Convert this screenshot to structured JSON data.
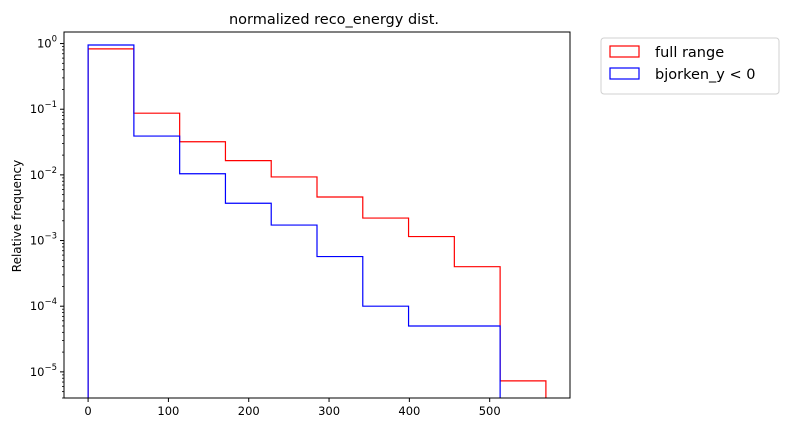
{
  "chart_data": {
    "type": "histogram",
    "title": "normalized reco_energy dist.",
    "xlabel": "",
    "ylabel": "Relative frequency",
    "yscale": "log",
    "xlim": [
      -30,
      600
    ],
    "ylim": [
      4e-06,
      1.5
    ],
    "x_ticks": [
      0,
      100,
      200,
      300,
      400,
      500
    ],
    "y_ticks": [
      {
        "value": 1e-05,
        "base": "10",
        "exp": "−5"
      },
      {
        "value": 0.0001,
        "base": "10",
        "exp": "−4"
      },
      {
        "value": 0.001,
        "base": "10",
        "exp": "−3"
      },
      {
        "value": 0.01,
        "base": "10",
        "exp": "−2"
      },
      {
        "value": 0.1,
        "base": "10",
        "exp": "−1"
      },
      {
        "value": 1,
        "base": "10",
        "exp": "0"
      }
    ],
    "bin_edges": [
      0,
      57,
      114,
      171,
      228,
      285,
      342,
      399,
      456,
      513,
      570
    ],
    "series": [
      {
        "name": "full range",
        "color": "#ff0000",
        "values": [
          0.83,
          0.087,
          0.032,
          0.0165,
          0.0093,
          0.0046,
          0.0022,
          0.00115,
          0.0004,
          7.3e-06
        ]
      },
      {
        "name": "bjorken_y < 0",
        "color": "#0000ff",
        "values": [
          0.95,
          0.039,
          0.0104,
          0.0037,
          0.00172,
          0.00057,
          0.0001,
          5e-05,
          5e-05,
          0
        ]
      }
    ],
    "legend_position": "outside upper right",
    "grid": false
  }
}
